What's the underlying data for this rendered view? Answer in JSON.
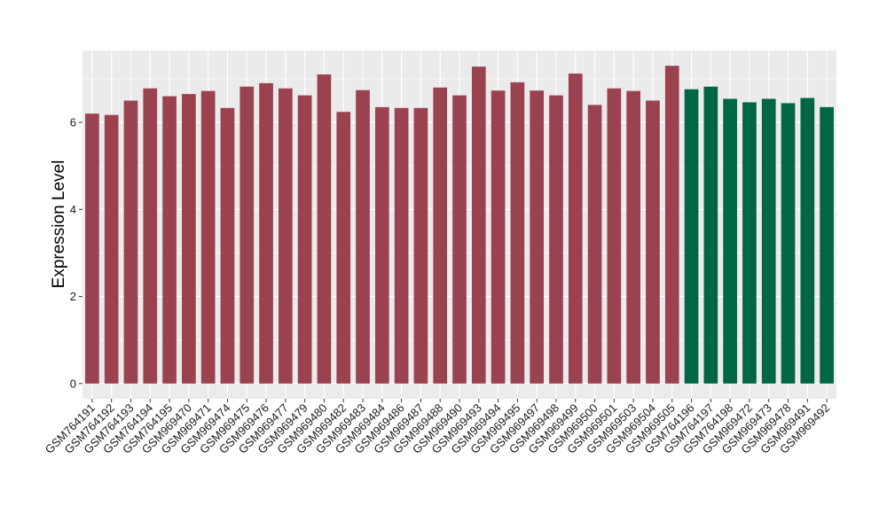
{
  "chart_data": {
    "type": "bar",
    "title": "",
    "xlabel": "",
    "ylabel": "Expression Level",
    "ylim": [
      -0.35,
      7.65
    ],
    "yticks": [
      0,
      2,
      4,
      6
    ],
    "grid": true,
    "legend": "none",
    "categories": [
      "GSM764191",
      "GSM764192",
      "GSM764193",
      "GSM764194",
      "GSM764195",
      "GSM969470",
      "GSM969471",
      "GSM969474",
      "GSM969475",
      "GSM969476",
      "GSM969477",
      "GSM969479",
      "GSM969480",
      "GSM969482",
      "GSM969483",
      "GSM969484",
      "GSM969486",
      "GSM969487",
      "GSM969488",
      "GSM969490",
      "GSM969493",
      "GSM969494",
      "GSM969495",
      "GSM969497",
      "GSM969498",
      "GSM969499",
      "GSM969500",
      "GSM969501",
      "GSM969503",
      "GSM969504",
      "GSM969505",
      "GSM764196",
      "GSM764197",
      "GSM764198",
      "GSM969472",
      "GSM969473",
      "GSM969478",
      "GSM969491",
      "GSM969492"
    ],
    "values": [
      6.2,
      6.17,
      6.5,
      6.78,
      6.6,
      6.65,
      6.72,
      6.33,
      6.82,
      6.9,
      6.78,
      6.62,
      7.1,
      6.24,
      6.74,
      6.35,
      6.33,
      6.33,
      6.8,
      6.62,
      7.28,
      6.73,
      6.92,
      6.73,
      6.62,
      7.12,
      6.4,
      6.78,
      6.72,
      6.5,
      7.3,
      6.76,
      6.82,
      6.54,
      6.46,
      6.54,
      6.44,
      6.56,
      6.35
    ],
    "groups": [
      0,
      0,
      0,
      0,
      0,
      0,
      0,
      0,
      0,
      0,
      0,
      0,
      0,
      0,
      0,
      0,
      0,
      0,
      0,
      0,
      0,
      0,
      0,
      0,
      0,
      0,
      0,
      0,
      0,
      0,
      0,
      1,
      1,
      1,
      1,
      1,
      1,
      1,
      1
    ],
    "colors": [
      "#9b4250",
      "#006646"
    ],
    "panel_background": "#ebebeb",
    "grid_color": "#ffffff"
  }
}
